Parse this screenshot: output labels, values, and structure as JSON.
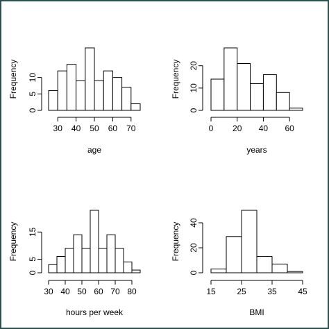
{
  "chart_data": [
    {
      "type": "bar",
      "subtype": "histogram",
      "title": "",
      "xlabel": "age",
      "ylabel": "Frequency",
      "bins": [
        [
          25,
          30
        ],
        [
          30,
          35
        ],
        [
          35,
          40
        ],
        [
          40,
          45
        ],
        [
          45,
          50
        ],
        [
          50,
          55
        ],
        [
          55,
          60
        ],
        [
          60,
          65
        ],
        [
          65,
          70
        ],
        [
          70,
          75
        ]
      ],
      "values": [
        6,
        12,
        14,
        9,
        19,
        9,
        12,
        10,
        7,
        2
      ],
      "xticks": [
        30,
        40,
        50,
        60,
        70
      ],
      "yticks": [
        0,
        5,
        10
      ],
      "xlim": [
        25,
        75
      ],
      "ylim": [
        0,
        19
      ],
      "grid": false
    },
    {
      "type": "bar",
      "subtype": "histogram",
      "title": "",
      "xlabel": "years",
      "ylabel": "Frequency",
      "bins": [
        [
          0,
          10
        ],
        [
          10,
          20
        ],
        [
          20,
          30
        ],
        [
          30,
          40
        ],
        [
          40,
          50
        ],
        [
          50,
          60
        ],
        [
          60,
          70
        ]
      ],
      "values": [
        14,
        28,
        21,
        12,
        16,
        8,
        1
      ],
      "xticks": [
        0,
        20,
        40,
        60
      ],
      "yticks": [
        0,
        10,
        20
      ],
      "xlim": [
        0,
        70
      ],
      "ylim": [
        0,
        28
      ],
      "grid": false
    },
    {
      "type": "bar",
      "subtype": "histogram",
      "title": "",
      "xlabel": "hours per week",
      "ylabel": "Frequency",
      "bins": [
        [
          30,
          35
        ],
        [
          35,
          40
        ],
        [
          40,
          45
        ],
        [
          45,
          50
        ],
        [
          50,
          55
        ],
        [
          55,
          60
        ],
        [
          60,
          65
        ],
        [
          65,
          70
        ],
        [
          70,
          75
        ],
        [
          75,
          80
        ],
        [
          80,
          85
        ]
      ],
      "values": [
        3,
        6,
        9,
        14,
        9,
        23,
        9,
        14,
        9,
        4,
        1
      ],
      "xticks": [
        30,
        40,
        50,
        60,
        70,
        80
      ],
      "yticks": [
        0,
        5,
        15
      ],
      "xlim": [
        30,
        85
      ],
      "ylim": [
        0,
        23
      ],
      "grid": false
    },
    {
      "type": "bar",
      "subtype": "histogram",
      "title": "",
      "xlabel": "BMI",
      "ylabel": "Frequency",
      "bins": [
        [
          15,
          20
        ],
        [
          20,
          25
        ],
        [
          25,
          30
        ],
        [
          30,
          35
        ],
        [
          35,
          40
        ],
        [
          40,
          45
        ]
      ],
      "values": [
        3,
        29,
        50,
        13,
        7,
        1
      ],
      "xticks": [
        15,
        25,
        35,
        45
      ],
      "yticks": [
        0,
        20,
        40
      ],
      "xlim": [
        15,
        45
      ],
      "ylim": [
        0,
        50
      ],
      "grid": false
    }
  ]
}
